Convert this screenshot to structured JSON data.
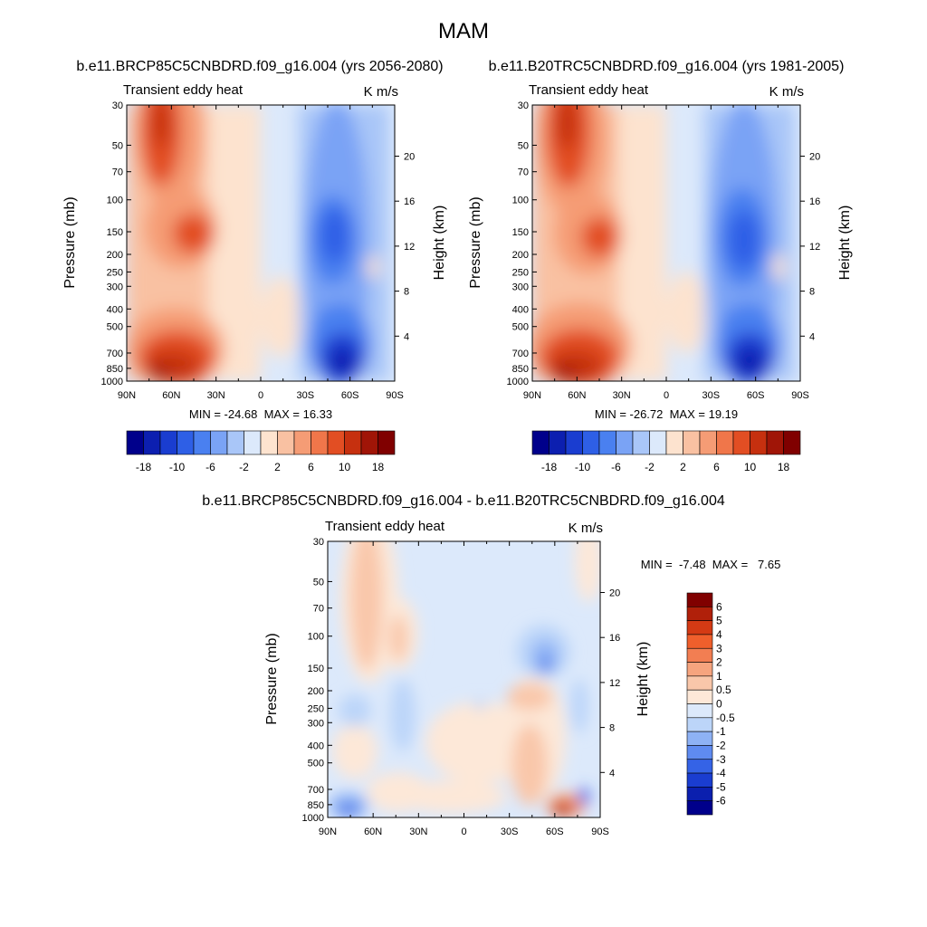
{
  "figure": {
    "title": "MAM"
  },
  "chart_data": [
    {
      "type": "heatmap",
      "panel": "future",
      "case_title": "b.e11.BRCP85C5CNBDRD.f09_g16.004 (yrs 2056-2080)",
      "variable_label": "Transient eddy heat",
      "units": "K m/s",
      "ylabel": "Pressure (mb)",
      "ylabel_right": "Height (km)",
      "x_ticks": [
        "90N",
        "60N",
        "30N",
        "0",
        "30S",
        "60S",
        "90S"
      ],
      "x_range": [
        "90N",
        "90S"
      ],
      "pressure_ticks": [
        "30",
        "50",
        "70",
        "100",
        "150",
        "200",
        "250",
        "300",
        "400",
        "500",
        "700",
        "850",
        "1000"
      ],
      "pressure_range_mb": [
        30,
        1000
      ],
      "pressure_scale": "log",
      "height_ticks_km": [
        "4",
        "8",
        "12",
        "16",
        "20"
      ],
      "stats_text": "MIN = -24.68  MAX = 16.33",
      "min": -24.68,
      "max": 16.33,
      "colorbar": {
        "orientation": "horizontal",
        "labels": [
          "-18",
          "-10",
          "-6",
          "-2",
          "2",
          "6",
          "10",
          "18"
        ],
        "colors": [
          "#00008b",
          "#0c1fb0",
          "#1a3dd0",
          "#2e5fe6",
          "#4a80f0",
          "#7aa3f5",
          "#a9c6f8",
          "#dce9fb",
          "#fde3cf",
          "#f9c1a2",
          "#f59c75",
          "#f0764a",
          "#e24e23",
          "#c6300f",
          "#a01507",
          "#800000"
        ]
      },
      "features": [
        {
          "region": "60N-75N, 30-70 mb",
          "sign": "positive",
          "peak": "~16"
        },
        {
          "region": "40N-55N, 150 mb",
          "sign": "positive",
          "peak": "~14"
        },
        {
          "region": "45N-70N, 700-1000 mb",
          "sign": "positive",
          "peak": "~16"
        },
        {
          "region": "40S-60S, 150-200 mb",
          "sign": "negative",
          "peak": "~-20"
        },
        {
          "region": "45S-60S, 850 mb",
          "sign": "negative",
          "peak": "~-24"
        }
      ]
    },
    {
      "type": "heatmap",
      "panel": "historical",
      "case_title": "b.e11.B20TRC5CNBDRD.f09_g16.004 (yrs 1981-2005)",
      "variable_label": "Transient eddy heat",
      "units": "K m/s",
      "ylabel": "Pressure (mb)",
      "ylabel_right": "Height (km)",
      "x_ticks": [
        "90N",
        "60N",
        "30N",
        "0",
        "30S",
        "60S",
        "90S"
      ],
      "x_range": [
        "90N",
        "90S"
      ],
      "pressure_ticks": [
        "30",
        "50",
        "70",
        "100",
        "150",
        "200",
        "250",
        "300",
        "400",
        "500",
        "700",
        "850",
        "1000"
      ],
      "pressure_range_mb": [
        30,
        1000
      ],
      "pressure_scale": "log",
      "height_ticks_km": [
        "4",
        "8",
        "12",
        "16",
        "20"
      ],
      "stats_text": "MIN = -26.72  MAX = 19.19",
      "min": -26.72,
      "max": 19.19,
      "colorbar": {
        "orientation": "horizontal",
        "labels": [
          "-18",
          "-10",
          "-6",
          "-2",
          "2",
          "6",
          "10",
          "18"
        ],
        "colors": [
          "#00008b",
          "#0c1fb0",
          "#1a3dd0",
          "#2e5fe6",
          "#4a80f0",
          "#7aa3f5",
          "#a9c6f8",
          "#dce9fb",
          "#fde3cf",
          "#f9c1a2",
          "#f59c75",
          "#f0764a",
          "#e24e23",
          "#c6300f",
          "#a01507",
          "#800000"
        ]
      },
      "features": [
        {
          "region": "60N-75N, 30-70 mb",
          "sign": "positive",
          "peak": "~17"
        },
        {
          "region": "40N-55N, 150 mb",
          "sign": "positive",
          "peak": "~14"
        },
        {
          "region": "45N-70N, 700-1000 mb",
          "sign": "positive",
          "peak": "~19"
        },
        {
          "region": "40S-60S, 150-200 mb",
          "sign": "negative",
          "peak": "~-22"
        },
        {
          "region": "45S-60S, 850 mb",
          "sign": "negative",
          "peak": "~-26"
        }
      ]
    },
    {
      "type": "heatmap",
      "panel": "difference",
      "case_title": "b.e11.BRCP85C5CNBDRD.f09_g16.004 - b.e11.B20TRC5CNBDRD.f09_g16.004",
      "variable_label": "Transient eddy heat",
      "units": "K m/s",
      "ylabel": "Pressure (mb)",
      "ylabel_right": "Height (km)",
      "x_ticks": [
        "90N",
        "60N",
        "30N",
        "0",
        "30S",
        "60S",
        "90S"
      ],
      "x_range": [
        "90N",
        "90S"
      ],
      "pressure_ticks": [
        "30",
        "50",
        "70",
        "100",
        "150",
        "200",
        "250",
        "300",
        "400",
        "500",
        "700",
        "850",
        "1000"
      ],
      "pressure_range_mb": [
        30,
        1000
      ],
      "pressure_scale": "log",
      "height_ticks_km": [
        "4",
        "8",
        "12",
        "16",
        "20"
      ],
      "stats_text": "MIN =  -7.48  MAX =   7.65",
      "min": -7.48,
      "max": 7.65,
      "colorbar": {
        "orientation": "vertical",
        "labels": [
          "6",
          "5",
          "4",
          "3",
          "2",
          "1",
          "0.5",
          "0",
          "-0.5",
          "-1",
          "-2",
          "-3",
          "-4",
          "-5",
          "-6"
        ],
        "colors": [
          "#800000",
          "#b0200a",
          "#d43a14",
          "#ef5f2c",
          "#f27e52",
          "#f6a47e",
          "#f9c7aa",
          "#fde8d8",
          "#dce9fb",
          "#bcd5f9",
          "#8eb2f5",
          "#5f8bf0",
          "#3563e6",
          "#1a3dd0",
          "#0b1fae",
          "#00008b"
        ]
      },
      "features": [
        {
          "region": "45N-75N, 30-150 mb",
          "sign": "positive",
          "peak": "~2"
        },
        {
          "region": "30S-45S, 200 mb",
          "sign": "positive",
          "peak": "~2"
        },
        {
          "region": "45S-60S, 150 mb",
          "sign": "negative",
          "peak": "~-4"
        },
        {
          "region": "60S-75S, 850-1000 mb",
          "sign": "positive",
          "peak": "~7"
        },
        {
          "region": "75N-90N, 850-1000 mb",
          "sign": "negative",
          "peak": "~-4"
        }
      ]
    }
  ]
}
